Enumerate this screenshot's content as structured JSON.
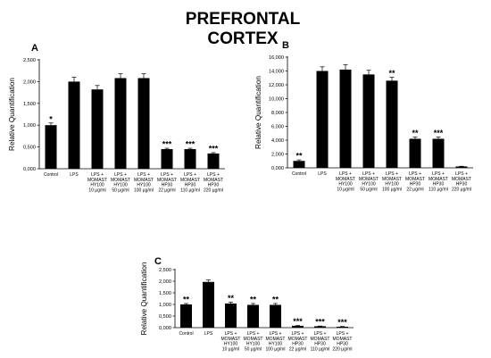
{
  "figure": {
    "title_lines": [
      "PREFRONTAL",
      "CORTEX"
    ]
  },
  "chart_data": [
    {
      "type": "bar",
      "panel": "A",
      "ylabel": "Relative Quantification",
      "xlabel": "",
      "ylim": [
        0,
        2500
      ],
      "yticks": [
        0,
        500,
        1000,
        1500,
        2000,
        2500
      ],
      "ytick_labels": [
        "0,000",
        "0,500",
        "1,000",
        "1,500",
        "2,000",
        "2,500"
      ],
      "categories": [
        [
          "Control"
        ],
        [
          "LPS"
        ],
        [
          "LPS +",
          "MOMAST",
          "HY100",
          "10 µg/ml"
        ],
        [
          "LPS +",
          "MOMAST",
          "HY100",
          "50 µg/ml"
        ],
        [
          "LPS +",
          "MOMAST",
          "HY100",
          "100 µg/ml"
        ],
        [
          "LPS +",
          "MOMAST",
          "HP30",
          "22 µg/ml"
        ],
        [
          "LPS +",
          "MOMAST",
          "HP30",
          "110 µg/ml"
        ],
        [
          "LPS +",
          "MOMAST",
          "HP30",
          "220 µg/ml"
        ]
      ],
      "values": [
        1000,
        2000,
        1820,
        2080,
        2080,
        450,
        450,
        350
      ],
      "errors": [
        50,
        100,
        90,
        100,
        100,
        20,
        20,
        20
      ],
      "annotations": [
        "*",
        "",
        "",
        "",
        "",
        "***",
        "***",
        "***"
      ],
      "grid": false
    },
    {
      "type": "bar",
      "panel": "B",
      "ylabel": "Relative Quantification",
      "xlabel": "",
      "ylim": [
        0,
        16000
      ],
      "yticks": [
        0,
        2000,
        4000,
        6000,
        8000,
        10000,
        12000,
        14000,
        16000
      ],
      "ytick_labels": [
        "0,000",
        "2,000",
        "4,000",
        "6,000",
        "8,000",
        "10,000",
        "12,000",
        "14,000",
        "16,000"
      ],
      "categories": [
        [
          "Control"
        ],
        [
          "LPS"
        ],
        [
          "LPS +",
          "MOMAST",
          "HY100",
          "10 µg/ml"
        ],
        [
          "LPS +",
          "MOMAST",
          "HY100",
          "50 µg/ml"
        ],
        [
          "LPS +",
          "MOMAST",
          "HY100",
          "100 µg/ml"
        ],
        [
          "LPS +",
          "MOMAST",
          "HP30",
          "22 µg/ml"
        ],
        [
          "LPS +",
          "MOMAST",
          "HP30",
          "110 µg/ml"
        ],
        [
          "LPS +",
          "MOMAST",
          "HP30",
          "220 µg/ml"
        ]
      ],
      "values": [
        1000,
        14000,
        14200,
        13500,
        12600,
        4200,
        4200,
        200
      ],
      "errors": [
        150,
        600,
        700,
        600,
        500,
        250,
        250,
        30
      ],
      "annotations": [
        "**",
        "",
        "",
        "",
        "**",
        "**",
        "***",
        ""
      ],
      "grid": false
    },
    {
      "type": "bar",
      "panel": "C",
      "ylabel": "Relative Quantification",
      "xlabel": "",
      "ylim": [
        0,
        2500
      ],
      "yticks": [
        0,
        500,
        1000,
        1500,
        2000,
        2500
      ],
      "ytick_labels": [
        "0,000",
        "0,500",
        "1,000",
        "1,500",
        "2,000",
        "2,500"
      ],
      "categories": [
        [
          "Control"
        ],
        [
          "LPS"
        ],
        [
          "LPS +",
          "MOMAST",
          "HY100",
          "10 µg/ml"
        ],
        [
          "LPS +",
          "MOMAST",
          "HY100",
          "50 µg/ml"
        ],
        [
          "LPS +",
          "MOMAST",
          "HY100",
          "100 µg/ml"
        ],
        [
          "LPS +",
          "MOMAST",
          "HP30",
          "22 µg/ml"
        ],
        [
          "LPS +",
          "MOMAST",
          "HP30",
          "110 µg/ml"
        ],
        [
          "LPS +",
          "MOMAST",
          "HP30",
          "220 µg/ml"
        ]
      ],
      "values": [
        1000,
        1970,
        1040,
        980,
        980,
        80,
        60,
        40
      ],
      "errors": [
        40,
        80,
        60,
        60,
        60,
        10,
        10,
        10
      ],
      "annotations": [
        "**",
        "",
        "**",
        "**",
        "**",
        "***",
        "***",
        "***"
      ],
      "grid": false
    }
  ]
}
